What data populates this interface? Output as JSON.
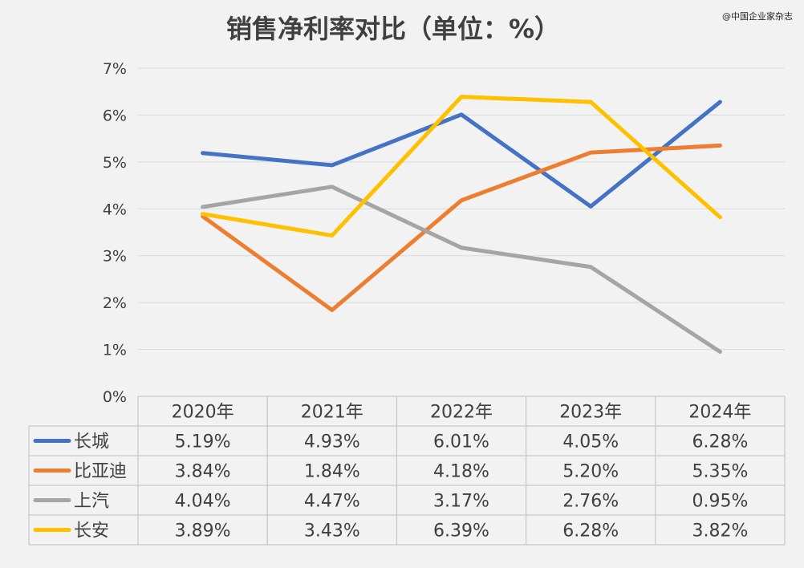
{
  "title": "销售净利率对比（单位：%）",
  "credit": "@中国企业家杂志",
  "chart_data": {
    "type": "line",
    "title": "销售净利率对比（单位：%）",
    "categories": [
      "2020年",
      "2021年",
      "2022年",
      "2023年",
      "2024年"
    ],
    "ylim": [
      0,
      7
    ],
    "yticks": [
      "0%",
      "1%",
      "2%",
      "3%",
      "4%",
      "5%",
      "6%",
      "7%"
    ],
    "grid": true,
    "legend": "data-table-left",
    "series": [
      {
        "name": "长城",
        "color": "#4472c4",
        "values": [
          5.19,
          4.93,
          6.01,
          4.05,
          6.28
        ],
        "labels": [
          "5.19%",
          "4.93%",
          "6.01%",
          "4.05%",
          "6.28%"
        ]
      },
      {
        "name": "比亚迪",
        "color": "#ed7d31",
        "values": [
          3.84,
          1.84,
          4.18,
          5.2,
          5.35
        ],
        "labels": [
          "3.84%",
          "1.84%",
          "4.18%",
          "5.20%",
          "5.35%"
        ]
      },
      {
        "name": "上汽",
        "color": "#a5a5a5",
        "values": [
          4.04,
          4.47,
          3.17,
          2.76,
          0.95
        ],
        "labels": [
          "4.04%",
          "4.47%",
          "3.17%",
          "2.76%",
          "0.95%"
        ]
      },
      {
        "name": "长安",
        "color": "#ffc000",
        "values": [
          3.89,
          3.43,
          6.39,
          6.28,
          3.82
        ],
        "labels": [
          "3.89%",
          "3.43%",
          "6.39%",
          "6.28%",
          "3.82%"
        ]
      }
    ]
  }
}
